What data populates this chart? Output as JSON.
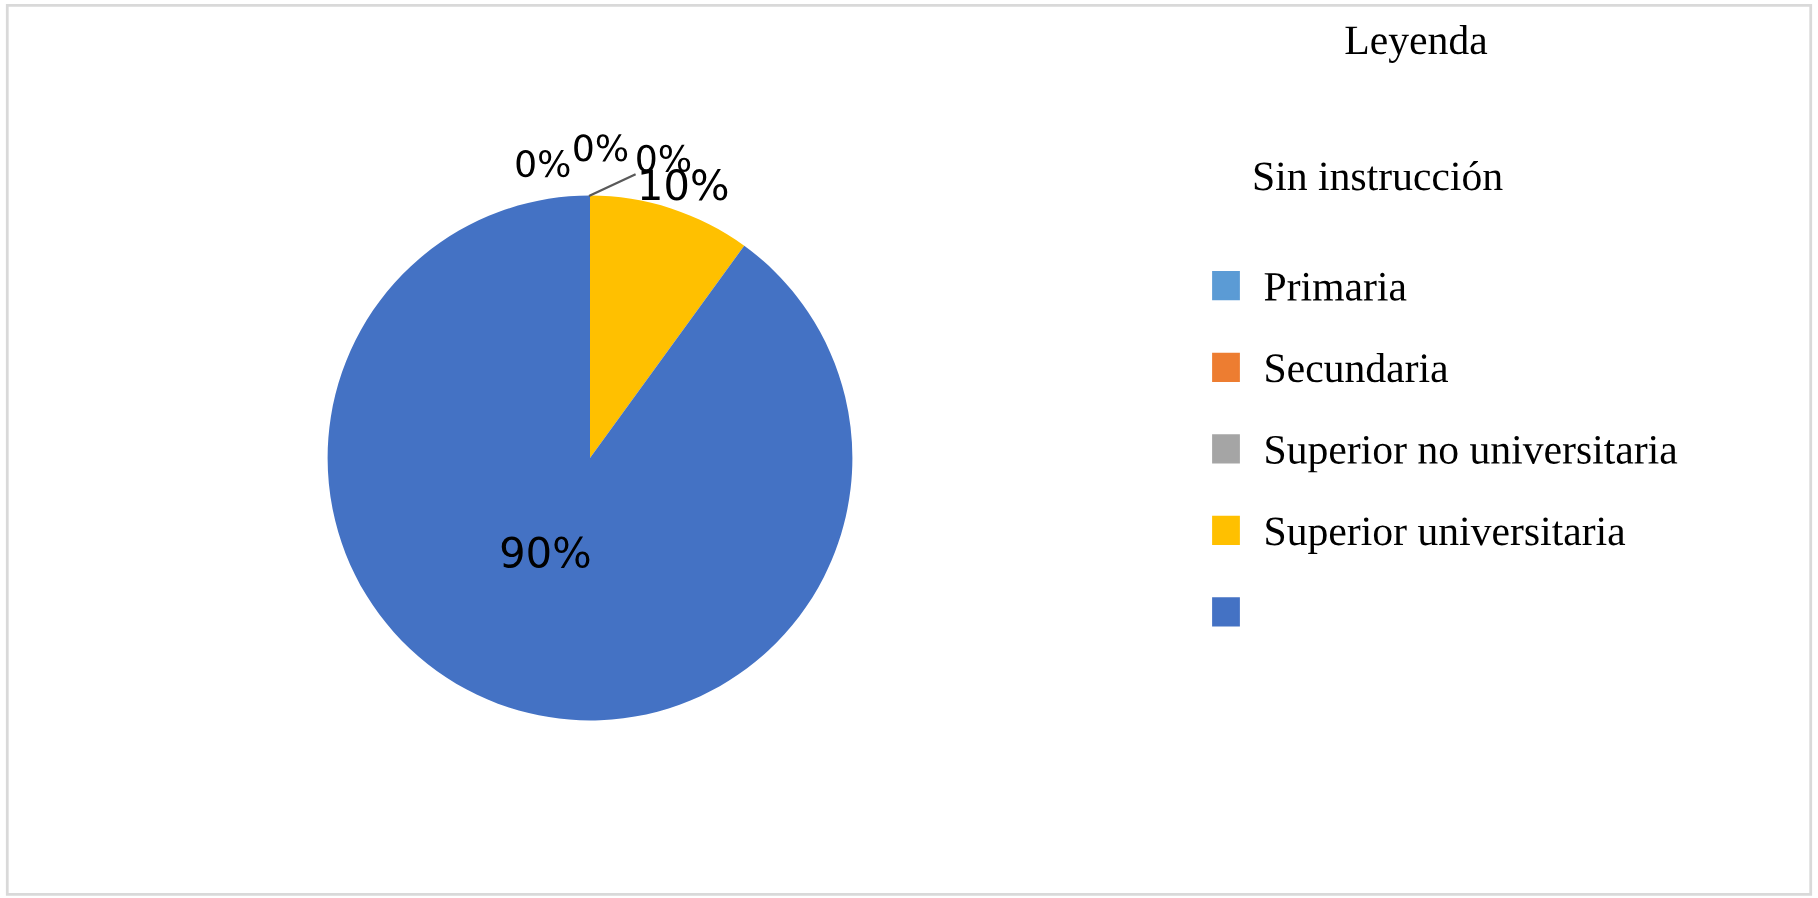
{
  "chart_data": {
    "type": "pie",
    "legend_title": "Leyenda",
    "annotations": [
      "Sin instrucción"
    ],
    "categories": [
      "Primaria",
      "Secundaria",
      "Superior no universitaria",
      "Superior universitaria",
      null
    ],
    "values": [
      0,
      0,
      0,
      10,
      90
    ],
    "colors": [
      "#5b9bd5",
      "#ed7d31",
      "#a5a5a5",
      "#ffc000",
      "#4472c4"
    ],
    "value_labels": [
      "0%",
      "0%",
      "0%",
      "10%",
      "90%"
    ],
    "legend": "right"
  }
}
